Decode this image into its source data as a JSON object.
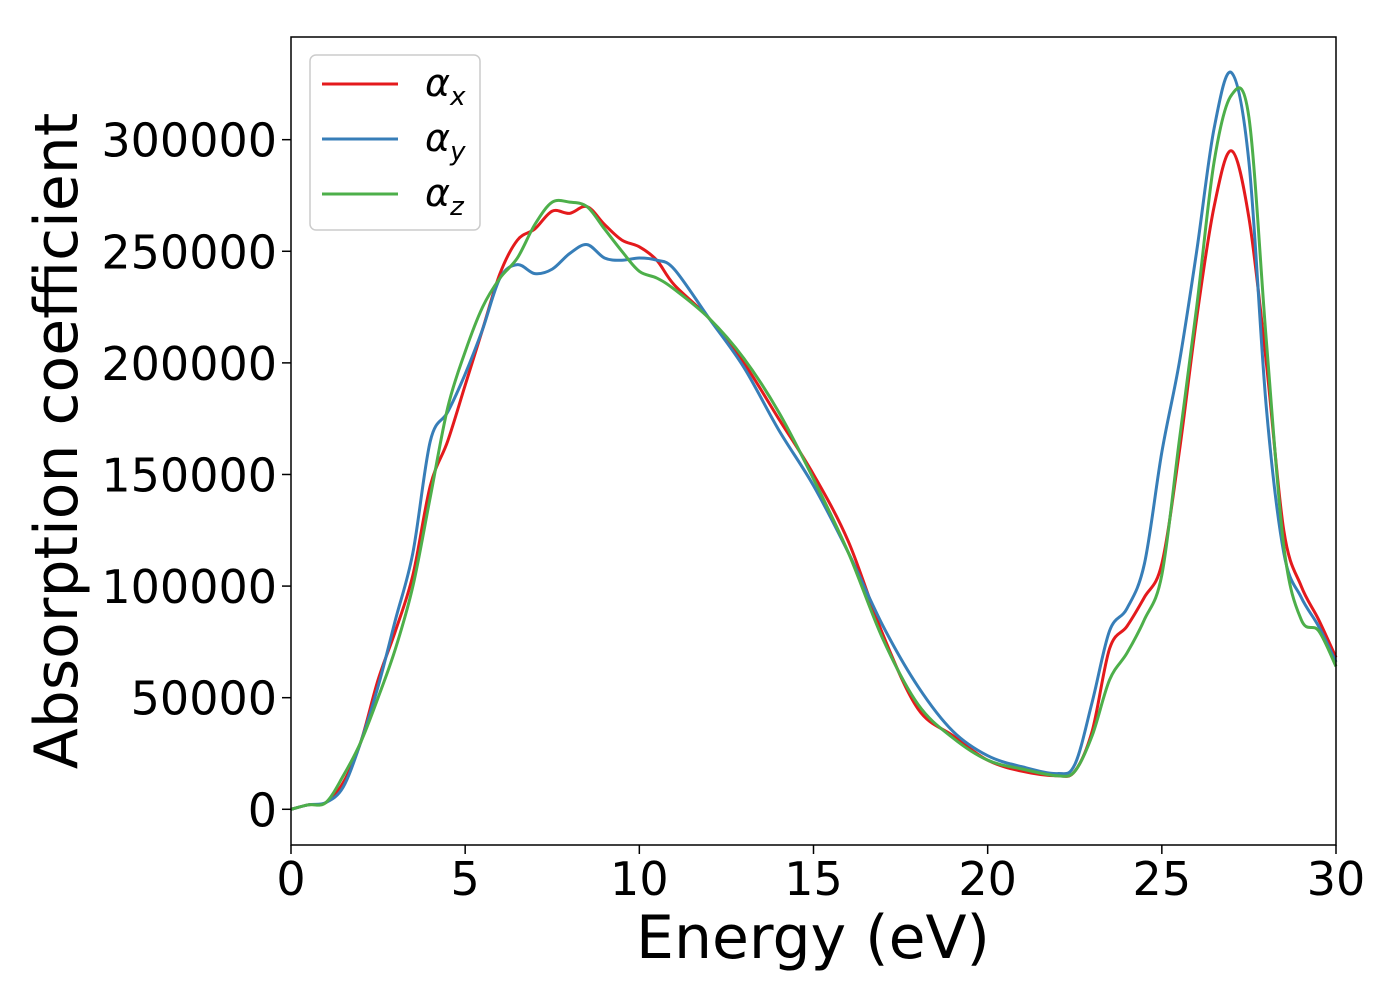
{
  "chart_data": {
    "type": "line",
    "xlabel": "Energy (eV)",
    "ylabel": "Absorption coefficient",
    "xlim": [
      0,
      30
    ],
    "ylim": [
      -16000,
      346000
    ],
    "xticks": [
      0,
      5,
      10,
      15,
      20,
      25,
      30
    ],
    "xtick_labels": [
      "0",
      "5",
      "10",
      "15",
      "20",
      "25",
      "30"
    ],
    "yticks": [
      0,
      50000,
      100000,
      150000,
      200000,
      250000,
      300000
    ],
    "ytick_labels": [
      "0",
      "50000",
      "100000",
      "150000",
      "200000",
      "250000",
      "300000"
    ],
    "grid": false,
    "legend_position": "upper-left",
    "series": [
      {
        "name": "αx",
        "name_base": "α",
        "name_sub": "x",
        "color": "#e41a1c",
        "x": [
          0,
          0.5,
          1.0,
          1.5,
          2.0,
          2.5,
          3.0,
          3.5,
          4.0,
          4.5,
          5.0,
          5.5,
          6.0,
          6.5,
          7.0,
          7.5,
          8.0,
          8.5,
          9.0,
          9.5,
          10.0,
          10.5,
          11.0,
          12.0,
          13.0,
          14.0,
          15.0,
          16.0,
          17.0,
          18.0,
          19.0,
          20.0,
          21.0,
          22.0,
          22.5,
          23.0,
          23.5,
          24.0,
          24.5,
          25.0,
          25.5,
          26.0,
          26.5,
          27.0,
          27.5,
          28.0,
          28.5,
          29.0,
          29.5,
          30.0
        ],
        "y": [
          0,
          2000,
          3000,
          12000,
          30000,
          58000,
          80000,
          105000,
          145000,
          165000,
          190000,
          215000,
          240000,
          255000,
          260000,
          268000,
          267000,
          270000,
          262000,
          255000,
          252000,
          246000,
          235000,
          220000,
          200000,
          175000,
          150000,
          120000,
          78000,
          45000,
          33000,
          22000,
          17000,
          15000,
          17000,
          35000,
          72000,
          82000,
          95000,
          110000,
          160000,
          220000,
          270000,
          295000,
          265000,
          200000,
          125000,
          100000,
          85000,
          68000
        ]
      },
      {
        "name": "αy",
        "name_base": "α",
        "name_sub": "y",
        "color": "#377eb8",
        "x": [
          0,
          0.5,
          1.0,
          1.5,
          2.0,
          2.5,
          3.0,
          3.5,
          4.0,
          4.5,
          5.0,
          5.5,
          6.0,
          6.5,
          7.0,
          7.5,
          8.0,
          8.5,
          9.0,
          9.5,
          10.0,
          10.5,
          11.0,
          12.0,
          13.0,
          14.0,
          15.0,
          16.0,
          17.0,
          18.0,
          19.0,
          20.0,
          21.0,
          22.0,
          22.5,
          23.0,
          23.5,
          24.0,
          24.5,
          25.0,
          25.5,
          26.0,
          26.5,
          27.0,
          27.5,
          28.0,
          28.5,
          29.0,
          29.5,
          30.0
        ],
        "y": [
          0,
          2000,
          3000,
          10000,
          30000,
          55000,
          85000,
          115000,
          165000,
          178000,
          195000,
          215000,
          238000,
          244000,
          240000,
          242000,
          249000,
          253000,
          247000,
          246000,
          247000,
          246000,
          242000,
          220000,
          198000,
          170000,
          145000,
          115000,
          82000,
          55000,
          35000,
          24000,
          19000,
          16000,
          20000,
          48000,
          80000,
          90000,
          110000,
          160000,
          200000,
          250000,
          305000,
          330000,
          290000,
          180000,
          115000,
          95000,
          82000,
          66000
        ]
      },
      {
        "name": "αz",
        "name_base": "α",
        "name_sub": "z",
        "color": "#4daf4a",
        "x": [
          0,
          0.5,
          1.0,
          1.5,
          2.0,
          2.5,
          3.0,
          3.5,
          4.0,
          4.5,
          5.0,
          5.5,
          6.0,
          6.5,
          7.0,
          7.5,
          8.0,
          8.5,
          9.0,
          9.5,
          10.0,
          10.5,
          11.0,
          12.0,
          13.0,
          14.0,
          15.0,
          16.0,
          17.0,
          18.0,
          19.0,
          20.0,
          21.0,
          22.0,
          22.5,
          23.0,
          23.5,
          24.0,
          24.5,
          25.0,
          25.5,
          26.0,
          26.5,
          27.0,
          27.5,
          28.0,
          28.5,
          29.0,
          29.5,
          30.0
        ],
        "y": [
          0,
          2000,
          3000,
          15000,
          30000,
          50000,
          72000,
          100000,
          140000,
          180000,
          205000,
          225000,
          238000,
          247000,
          262000,
          272000,
          272000,
          270000,
          260000,
          250000,
          241000,
          238000,
          233000,
          220000,
          202000,
          178000,
          148000,
          115000,
          76000,
          47000,
          32000,
          22000,
          18000,
          15000,
          17000,
          33000,
          58000,
          70000,
          85000,
          105000,
          165000,
          225000,
          290000,
          320000,
          310000,
          210000,
          118000,
          85000,
          80000,
          64000
        ]
      }
    ]
  }
}
